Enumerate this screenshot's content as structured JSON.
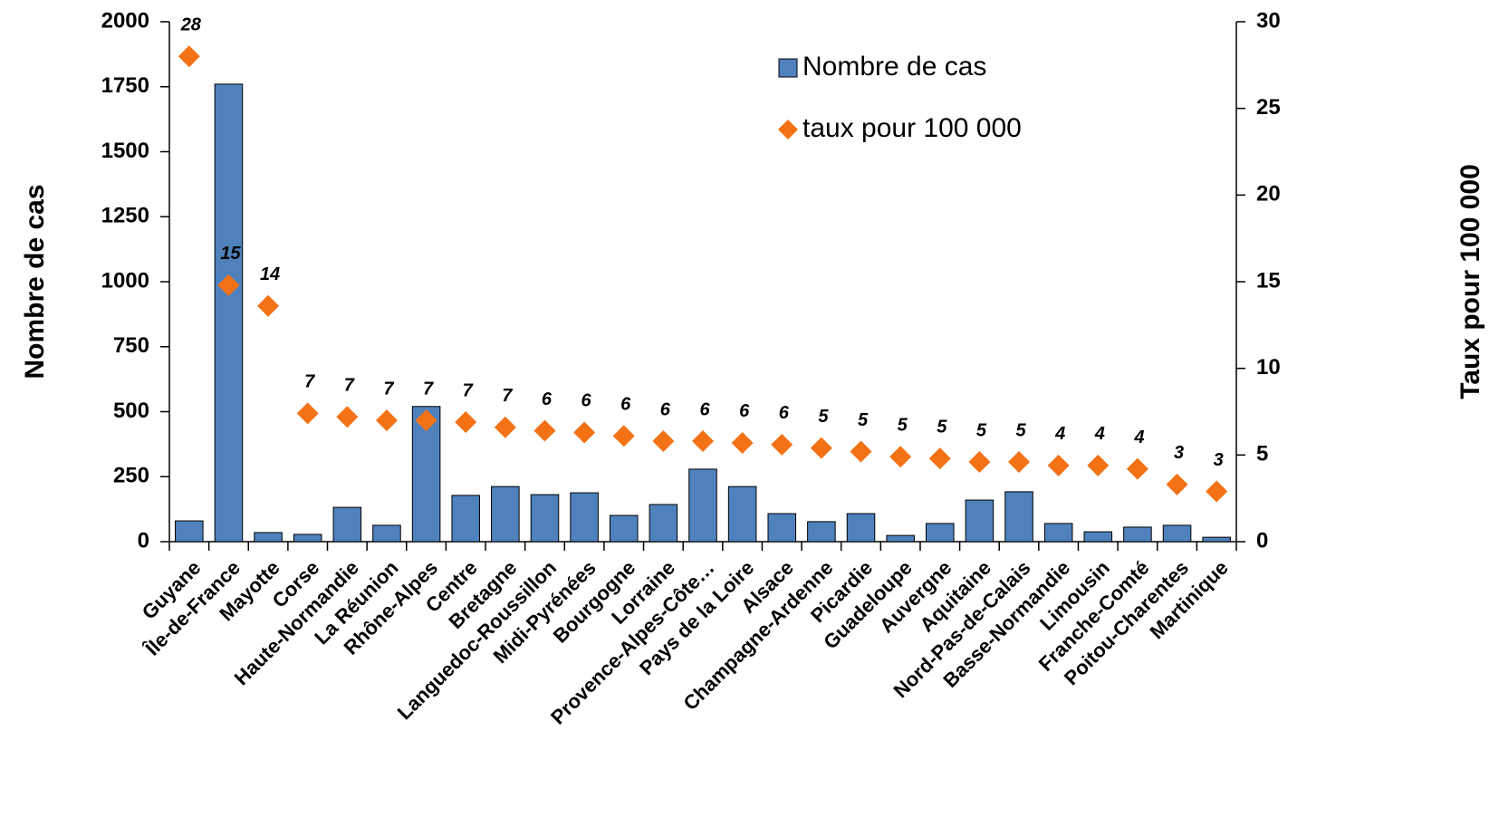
{
  "chart_data": {
    "type": "combo",
    "categories": [
      "Guyane",
      "Île-de-France",
      "Mayotte",
      "Corse",
      "Haute-Normandie",
      "La Réunion",
      "Rhône-Alpes",
      "Centre",
      "Bretagne",
      "Languedoc-Roussillon",
      "Midi-Pyrénées",
      "Bourgogne",
      "Lorraine",
      "Provence-Alpes-Côte…",
      "Pays de la Loire",
      "Alsace",
      "Champagne-Ardenne",
      "Picardie",
      "Guadeloupe",
      "Auvergne",
      "Aquitaine",
      "Nord-Pas-de-Calais",
      "Basse-Normandie",
      "Limousin",
      "Franche-Comté",
      "Poitou-Charentes",
      "Martinique"
    ],
    "series": [
      {
        "name": "Nombre de cas",
        "type": "bar",
        "color": "#4f81bd",
        "values": [
          80,
          1760,
          35,
          28,
          132,
          63,
          520,
          178,
          212,
          181,
          188,
          101,
          143,
          279,
          212,
          108,
          77,
          108,
          24,
          70,
          160,
          192,
          70,
          38,
          56,
          63,
          17
        ]
      },
      {
        "name": "taux pour 100 000",
        "type": "scatter",
        "axis": "y2",
        "color": "#f47216",
        "values": [
          28.0,
          14.8,
          13.6,
          7.4,
          7.2,
          7.0,
          7.0,
          6.9,
          6.6,
          6.4,
          6.3,
          6.1,
          5.8,
          5.8,
          5.7,
          5.6,
          5.4,
          5.2,
          4.9,
          4.8,
          4.6,
          4.6,
          4.4,
          4.4,
          4.2,
          3.3,
          2.9
        ],
        "value_labels": [
          "28",
          "15",
          "14",
          "7",
          "7",
          "7",
          "7",
          "7",
          "7",
          "6",
          "6",
          "6",
          "6",
          "6",
          "6",
          "6",
          "5",
          "5",
          "5",
          "5",
          "5",
          "5",
          "4",
          "4",
          "4",
          "3",
          "3"
        ]
      }
    ],
    "ylabel": "Nombre de cas",
    "y2label": "Taux pour 100 000",
    "ylim": [
      0,
      2000
    ],
    "yticks": [
      0,
      250,
      500,
      750,
      1000,
      1250,
      1500,
      1750,
      2000
    ],
    "y2lim": [
      0,
      30
    ],
    "y2ticks": [
      0,
      5,
      10,
      15,
      20,
      25,
      30
    ],
    "legend": "top-right"
  }
}
